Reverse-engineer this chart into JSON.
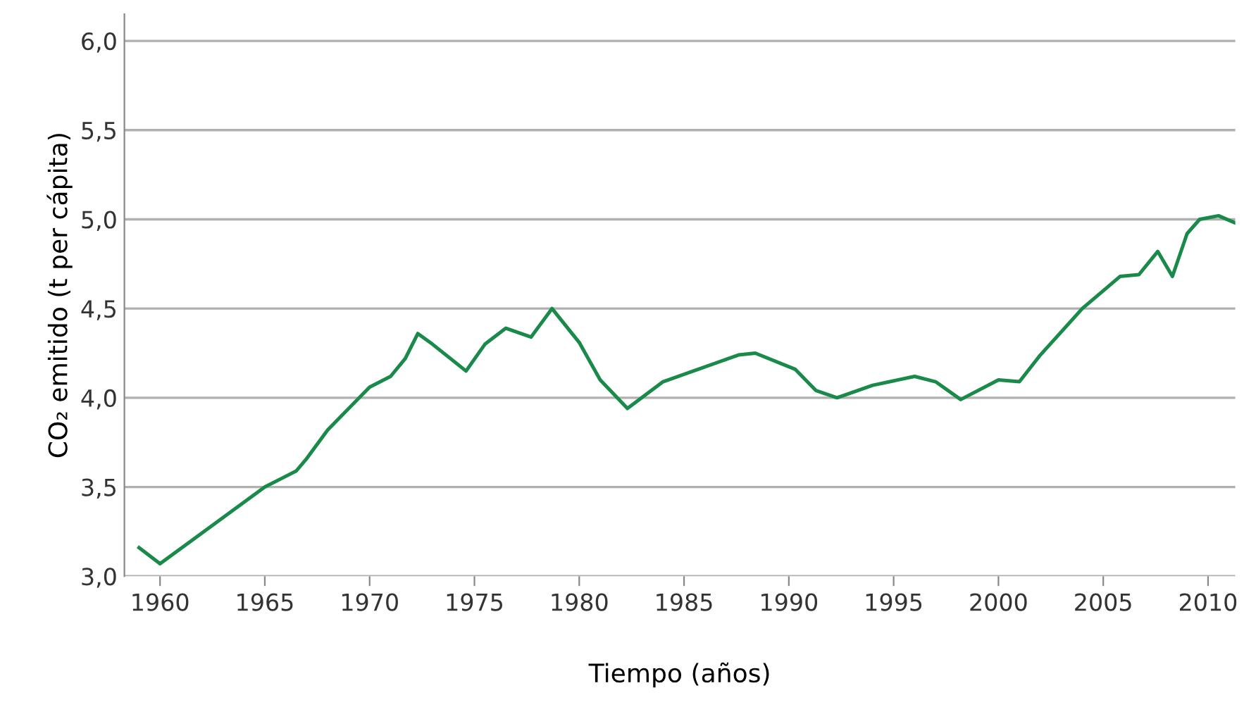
{
  "chart_data": {
    "type": "line",
    "xlabel": "Tiempo (años)",
    "ylabel": "CO₂ emitido (t per cápita)",
    "x": [
      1959,
      1960,
      1965,
      1966,
      1966.5,
      1967,
      1968,
      1970,
      1971,
      1971.7,
      1972.3,
      1973,
      1974.6,
      1975.5,
      1976.5,
      1977.7,
      1978.7,
      1980,
      1981,
      1982.3,
      1984,
      1987.6,
      1988.4,
      1990.3,
      1991.3,
      1992.3,
      1994,
      1996,
      1997,
      1998.2,
      2000,
      2001,
      2002,
      2004,
      2005,
      2005.8,
      2006.7,
      2007.6,
      2008.3,
      2009,
      2009.6,
      2010.5,
      2011.3
    ],
    "series": [
      {
        "color": "#1a8a4a",
        "values": [
          3.16,
          3.07,
          3.5,
          3.56,
          3.59,
          3.66,
          3.82,
          4.06,
          4.12,
          4.22,
          4.36,
          4.3,
          4.15,
          4.3,
          4.39,
          4.34,
          4.5,
          4.31,
          4.1,
          3.94,
          4.09,
          4.24,
          4.25,
          4.16,
          4.04,
          4.0,
          4.07,
          4.12,
          4.09,
          3.99,
          4.1,
          4.09,
          4.24,
          4.5,
          4.6,
          4.68,
          4.69,
          4.82,
          4.68,
          4.92,
          5.0,
          5.02,
          4.98
        ]
      }
    ],
    "xlim": [
      1958.3,
      2011.3
    ],
    "xticks": [
      1960,
      1965,
      1970,
      1975,
      1980,
      1985,
      1990,
      1995,
      2000,
      2005,
      2010
    ],
    "ylim": [
      3.0,
      6.15
    ],
    "yticks": [
      {
        "value": 3.0,
        "label": "3,0"
      },
      {
        "value": 3.5,
        "label": "3,5"
      },
      {
        "value": 4.0,
        "label": "4,0"
      },
      {
        "value": 4.5,
        "label": "4,5"
      },
      {
        "value": 5.0,
        "label": "5,0"
      },
      {
        "value": 5.5,
        "label": "5,5"
      },
      {
        "value": 6.0,
        "label": "6,0"
      }
    ],
    "grid": "y"
  }
}
